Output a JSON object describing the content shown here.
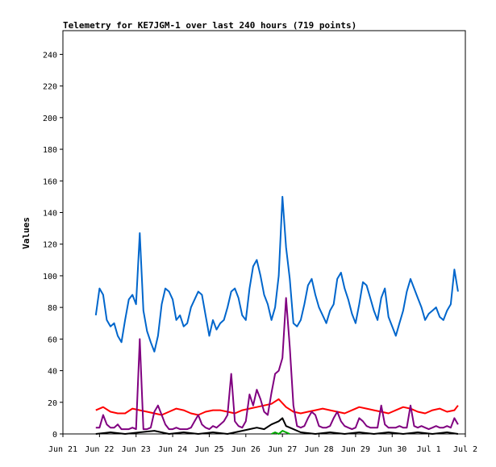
{
  "chart_data": {
    "type": "line",
    "title": "Telemetry for KE7JGM-1 over last 240 hours (719 points)",
    "xlabel": "",
    "ylabel": "Values",
    "ylim": [
      0,
      255
    ],
    "yticks": [
      0,
      20,
      40,
      60,
      80,
      100,
      120,
      140,
      160,
      180,
      200,
      220,
      240
    ],
    "xlim": [
      0,
      11
    ],
    "xticks": [
      {
        "x": 0,
        "label": "Jun 21"
      },
      {
        "x": 1,
        "label": "Jun 22"
      },
      {
        "x": 2,
        "label": "Jun 23"
      },
      {
        "x": 3,
        "label": "Jun 24"
      },
      {
        "x": 4,
        "label": "Jun 25"
      },
      {
        "x": 5,
        "label": "Jun 26"
      },
      {
        "x": 6,
        "label": "Jun 27"
      },
      {
        "x": 7,
        "label": "Jun 28"
      },
      {
        "x": 8,
        "label": "Jun 29"
      },
      {
        "x": 9,
        "label": "Jun 30"
      },
      {
        "x": 10,
        "label": "Jul 1"
      },
      {
        "x": 11,
        "label": "Jul 2"
      }
    ],
    "grid": false,
    "legend": "none",
    "series": [
      {
        "color": "#0066cc",
        "x": [
          0.9,
          1.0,
          1.1,
          1.2,
          1.3,
          1.4,
          1.5,
          1.6,
          1.7,
          1.8,
          1.9,
          2.0,
          2.1,
          2.2,
          2.3,
          2.4,
          2.5,
          2.6,
          2.7,
          2.8,
          2.9,
          3.0,
          3.1,
          3.2,
          3.3,
          3.4,
          3.5,
          3.6,
          3.7,
          3.8,
          3.9,
          4.0,
          4.1,
          4.2,
          4.3,
          4.4,
          4.5,
          4.6,
          4.7,
          4.8,
          4.9,
          5.0,
          5.1,
          5.2,
          5.3,
          5.4,
          5.5,
          5.6,
          5.7,
          5.8,
          5.9,
          6.0,
          6.1,
          6.2,
          6.3,
          6.4,
          6.5,
          6.6,
          6.7,
          6.8,
          6.9,
          7.0,
          7.1,
          7.2,
          7.3,
          7.4,
          7.5,
          7.6,
          7.7,
          7.8,
          7.9,
          8.0,
          8.1,
          8.2,
          8.3,
          8.4,
          8.5,
          8.6,
          8.7,
          8.8,
          8.9,
          9.0,
          9.1,
          9.2,
          9.3,
          9.4,
          9.5,
          9.6,
          9.7,
          9.8,
          9.9,
          10.0,
          10.1,
          10.2,
          10.3,
          10.4,
          10.5,
          10.6,
          10.7,
          10.8
        ],
        "values": [
          75,
          92,
          88,
          72,
          68,
          70,
          62,
          58,
          72,
          85,
          88,
          82,
          127,
          78,
          65,
          58,
          52,
          62,
          82,
          92,
          90,
          85,
          72,
          75,
          68,
          70,
          80,
          85,
          90,
          88,
          75,
          62,
          72,
          66,
          70,
          72,
          80,
          90,
          92,
          86,
          75,
          72,
          92,
          106,
          110,
          100,
          88,
          82,
          72,
          80,
          100,
          150,
          118,
          98,
          70,
          68,
          72,
          82,
          94,
          98,
          88,
          80,
          75,
          70,
          78,
          82,
          98,
          102,
          92,
          85,
          76,
          70,
          82,
          96,
          94,
          86,
          78,
          72,
          86,
          92,
          74,
          68,
          62,
          70,
          78,
          90,
          98,
          92,
          86,
          80,
          72,
          76,
          78,
          80,
          74,
          72,
          78,
          82,
          104,
          90
        ]
      },
      {
        "color": "#ff0000",
        "x": [
          0.9,
          1.1,
          1.3,
          1.5,
          1.7,
          1.9,
          2.1,
          2.3,
          2.5,
          2.7,
          2.9,
          3.1,
          3.3,
          3.5,
          3.7,
          3.9,
          4.1,
          4.3,
          4.5,
          4.7,
          4.9,
          5.1,
          5.3,
          5.5,
          5.7,
          5.9,
          6.1,
          6.3,
          6.5,
          6.7,
          6.9,
          7.1,
          7.3,
          7.5,
          7.7,
          7.9,
          8.1,
          8.3,
          8.5,
          8.7,
          8.9,
          9.1,
          9.3,
          9.5,
          9.7,
          9.9,
          10.1,
          10.3,
          10.5,
          10.7,
          10.8
        ],
        "values": [
          15,
          17,
          14,
          13,
          13,
          16,
          15,
          14,
          13,
          12,
          14,
          16,
          15,
          13,
          12,
          14,
          15,
          15,
          14,
          13,
          15,
          16,
          17,
          18,
          19,
          22,
          17,
          14,
          13,
          14,
          15,
          16,
          15,
          14,
          13,
          15,
          17,
          16,
          15,
          14,
          13,
          15,
          17,
          16,
          14,
          13,
          15,
          16,
          14,
          15,
          18
        ]
      },
      {
        "color": "#800080",
        "x": [
          0.9,
          1.0,
          1.1,
          1.2,
          1.3,
          1.4,
          1.5,
          1.6,
          1.7,
          1.8,
          1.9,
          2.0,
          2.1,
          2.2,
          2.3,
          2.4,
          2.5,
          2.6,
          2.7,
          2.8,
          2.9,
          3.0,
          3.1,
          3.2,
          3.3,
          3.4,
          3.5,
          3.6,
          3.7,
          3.8,
          3.9,
          4.0,
          4.1,
          4.2,
          4.3,
          4.4,
          4.5,
          4.6,
          4.7,
          4.8,
          4.9,
          5.0,
          5.1,
          5.2,
          5.3,
          5.4,
          5.5,
          5.6,
          5.7,
          5.8,
          5.9,
          6.0,
          6.1,
          6.2,
          6.3,
          6.4,
          6.5,
          6.6,
          6.7,
          6.8,
          6.9,
          7.0,
          7.1,
          7.2,
          7.3,
          7.4,
          7.5,
          7.6,
          7.7,
          7.8,
          7.9,
          8.0,
          8.1,
          8.2,
          8.3,
          8.4,
          8.5,
          8.6,
          8.7,
          8.8,
          8.9,
          9.0,
          9.1,
          9.2,
          9.3,
          9.4,
          9.5,
          9.6,
          9.7,
          9.8,
          9.9,
          10.0,
          10.1,
          10.2,
          10.3,
          10.4,
          10.5,
          10.6,
          10.7,
          10.8
        ],
        "values": [
          4,
          4,
          12,
          6,
          4,
          4,
          6,
          3,
          3,
          3,
          4,
          3,
          60,
          3,
          3,
          4,
          14,
          18,
          12,
          6,
          3,
          3,
          4,
          3,
          3,
          3,
          4,
          8,
          12,
          6,
          4,
          3,
          5,
          4,
          6,
          8,
          12,
          38,
          8,
          5,
          4,
          8,
          25,
          18,
          28,
          22,
          14,
          12,
          26,
          38,
          40,
          48,
          86,
          55,
          18,
          5,
          4,
          5,
          10,
          14,
          12,
          5,
          4,
          4,
          5,
          10,
          14,
          8,
          5,
          4,
          3,
          4,
          10,
          8,
          5,
          4,
          4,
          4,
          18,
          6,
          4,
          4,
          4,
          5,
          4,
          4,
          18,
          5,
          4,
          5,
          4,
          3,
          4,
          5,
          4,
          4,
          5,
          4,
          10,
          6
        ]
      },
      {
        "color": "#000000",
        "x": [
          0.9,
          1.3,
          1.7,
          2.1,
          2.5,
          2.9,
          3.3,
          3.7,
          4.1,
          4.5,
          4.9,
          5.1,
          5.3,
          5.5,
          5.7,
          5.9,
          6.0,
          6.1,
          6.3,
          6.5,
          6.9,
          7.3,
          7.7,
          8.1,
          8.5,
          8.9,
          9.3,
          9.7,
          10.1,
          10.5,
          10.8
        ],
        "values": [
          0,
          1,
          0,
          1,
          2,
          0,
          1,
          0,
          1,
          0,
          2,
          3,
          4,
          3,
          6,
          8,
          10,
          5,
          3,
          1,
          0,
          1,
          0,
          1,
          0,
          1,
          0,
          1,
          0,
          1,
          0
        ]
      },
      {
        "color": "#00aa00",
        "x": [
          5.7,
          5.8,
          5.9,
          6.0,
          6.1,
          6.2
        ],
        "values": [
          0,
          1,
          0,
          2,
          1,
          0
        ]
      }
    ]
  }
}
